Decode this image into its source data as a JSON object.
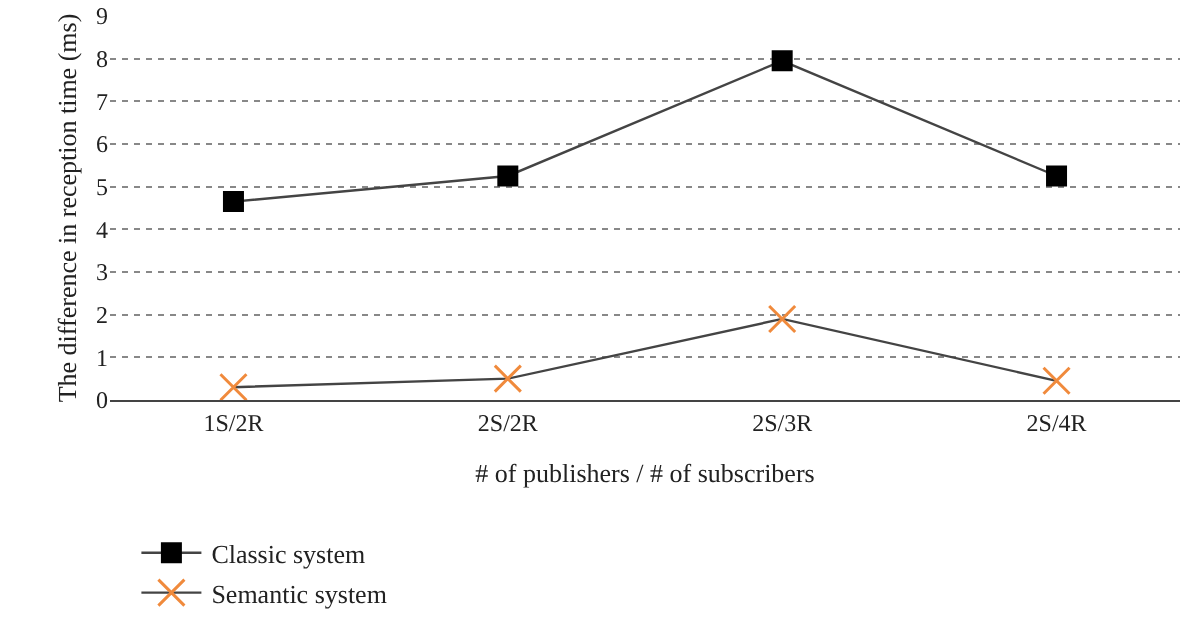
{
  "chart_data": {
    "type": "line",
    "xlabel": "# of publishers / # of subscribers",
    "ylabel": "The difference in reception time (ms)",
    "categories": [
      "1S/2R",
      "2S/2R",
      "2S/3R",
      "2S/4R"
    ],
    "series": [
      {
        "name": "Classic system",
        "color": "#000000",
        "marker": "square",
        "values": [
          4.65,
          5.25,
          7.95,
          5.25
        ]
      },
      {
        "name": "Semantic system",
        "color": "#f08a3c",
        "marker": "cross",
        "values": [
          0.3,
          0.5,
          1.9,
          0.45
        ]
      }
    ],
    "ylim": [
      0,
      9
    ],
    "yticks": [
      0,
      1,
      2,
      3,
      4,
      5,
      6,
      7,
      8,
      9
    ],
    "grid": "y",
    "legend": "bottom left",
    "line_style": "solid"
  }
}
